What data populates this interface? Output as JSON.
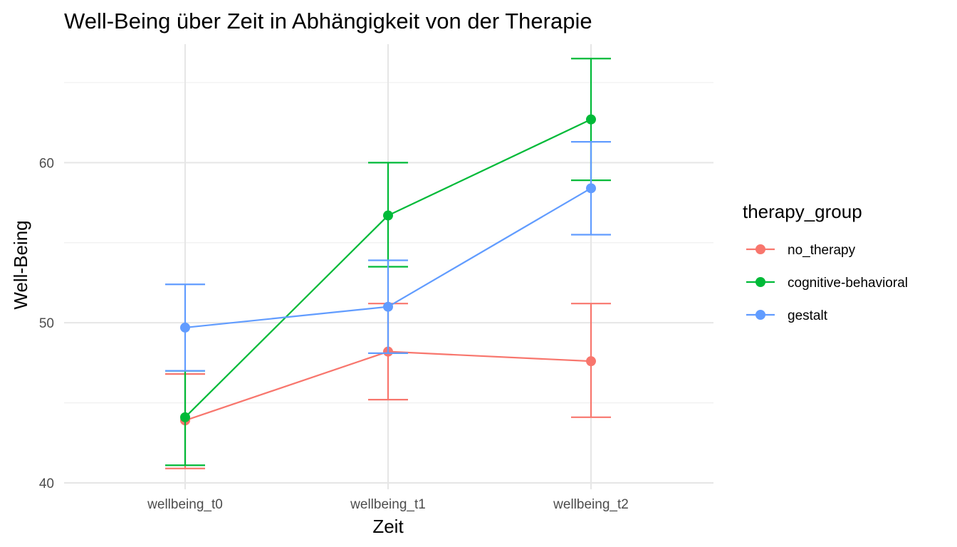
{
  "chart_data": {
    "type": "line",
    "title": "Well-Being über Zeit in Abhängigkeit von der Therapie",
    "xlabel": "Zeit",
    "ylabel": "Well-Being",
    "categories": [
      "wellbeing_t0",
      "wellbeing_t1",
      "wellbeing_t2"
    ],
    "ylim": [
      39.6,
      67.4
    ],
    "yticks": [
      40,
      50,
      60
    ],
    "grid": true,
    "legend": {
      "title": "therapy_group",
      "position": "right"
    },
    "series": [
      {
        "name": "no_therapy",
        "color": "#F8766D",
        "values": [
          43.9,
          48.2,
          47.6
        ],
        "lower": [
          40.9,
          45.2,
          44.1
        ],
        "upper": [
          46.8,
          51.2,
          51.2
        ]
      },
      {
        "name": "cognitive-behavioral",
        "color": "#00BA38",
        "values": [
          44.1,
          56.7,
          62.7
        ],
        "lower": [
          41.1,
          53.5,
          58.9
        ],
        "upper": [
          47.0,
          60.0,
          66.5
        ]
      },
      {
        "name": "gestalt",
        "color": "#619CFF",
        "values": [
          49.7,
          51.0,
          58.4
        ],
        "lower": [
          47.0,
          48.1,
          55.5
        ],
        "upper": [
          52.4,
          53.9,
          61.3
        ]
      }
    ]
  }
}
